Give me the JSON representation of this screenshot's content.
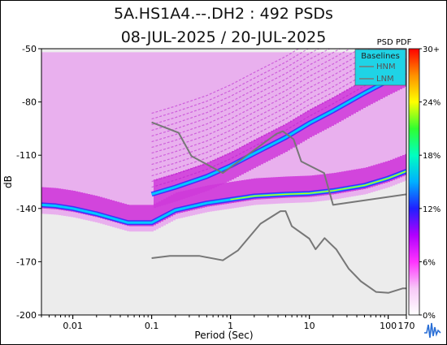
{
  "chart_data": {
    "type": "heatmap",
    "title": "5A.HS1A4.--.DH2 : 492 PSDs",
    "subtitle": "08-JUL-2025 / 20-JUL-2025",
    "xlabel": "Period (Sec)",
    "ylabel": "dB",
    "x_scale": "log",
    "xlim": [
      0.004,
      170
    ],
    "ylim": [
      -200,
      -50
    ],
    "x_ticks": [
      {
        "value": 0.01,
        "label": "0.01"
      },
      {
        "value": 0.1,
        "label": "0.1"
      },
      {
        "value": 1,
        "label": "1"
      },
      {
        "value": 10,
        "label": "10"
      },
      {
        "value": 100,
        "label": "100"
      },
      {
        "value": 170,
        "label": "170"
      }
    ],
    "y_ticks": [
      {
        "value": -50,
        "label": "-50"
      },
      {
        "value": -80,
        "label": "-80"
      },
      {
        "value": -110,
        "label": "-110"
      },
      {
        "value": -140,
        "label": "-140"
      },
      {
        "value": -170,
        "label": "-170"
      },
      {
        "value": -200,
        "label": "-200"
      }
    ],
    "colorbar": {
      "title": "PSD PDF",
      "range": [
        0,
        30
      ],
      "unit": "%",
      "ticks": [
        "30+",
        "24%",
        "18%",
        "12%",
        "6%",
        "0%"
      ],
      "colors": [
        "#ffffff",
        "#f7c8f7",
        "#ff33ff",
        "#b000ff",
        "#2020ff",
        "#00b0ff",
        "#00ffc0",
        "#30ff30",
        "#ffff00",
        "#ff9000",
        "#ff0000"
      ]
    },
    "legend": {
      "title": "Baselines",
      "position": "top-right",
      "entries": [
        "HNM",
        "LNM"
      ]
    },
    "series": [
      {
        "name": "HNM",
        "color": "#777777",
        "x": [
          0.1,
          0.22,
          0.32,
          0.8,
          3.8,
          4.6,
          6.3,
          7.9,
          15.4,
          20,
          354.8
        ],
        "y": [
          -91.5,
          -97.4,
          -110.5,
          -120,
          -98,
          -96.5,
          -101,
          -113.5,
          -120,
          -138,
          -130
        ]
      },
      {
        "name": "LNM",
        "color": "#777777",
        "x": [
          0.1,
          0.17,
          0.4,
          0.8,
          1.24,
          2.4,
          4.3,
          5,
          6,
          10,
          12,
          15.6,
          21.9,
          31.6,
          45,
          70,
          101,
          154,
          328
        ],
        "y": [
          -168,
          -166.7,
          -166.7,
          -169.2,
          -163.7,
          -148.6,
          -141.5,
          -141.5,
          -150,
          -157,
          -163,
          -156.7,
          -163,
          -174,
          -181,
          -187,
          -187.5,
          -185,
          -185
        ]
      },
      {
        "name": "mode",
        "type": "pdf-ridge",
        "x": [
          0.004,
          0.006,
          0.01,
          0.02,
          0.05,
          0.1,
          0.2,
          0.5,
          1,
          2,
          5,
          10,
          20,
          50,
          100,
          170
        ],
        "y": [
          -138,
          -138.5,
          -140,
          -143,
          -148,
          -148,
          -141,
          -137,
          -135,
          -133,
          -132,
          -131.5,
          -130,
          -127,
          -123,
          -119
        ]
      },
      {
        "name": "upper-branch",
        "type": "pdf-ridge",
        "x": [
          0.1,
          0.2,
          0.5,
          1,
          2,
          5,
          10,
          20,
          50,
          100,
          170
        ],
        "y": [
          -132,
          -128,
          -122,
          -116,
          -109,
          -100,
          -92,
          -85,
          -75,
          -68,
          -63
        ]
      }
    ]
  }
}
